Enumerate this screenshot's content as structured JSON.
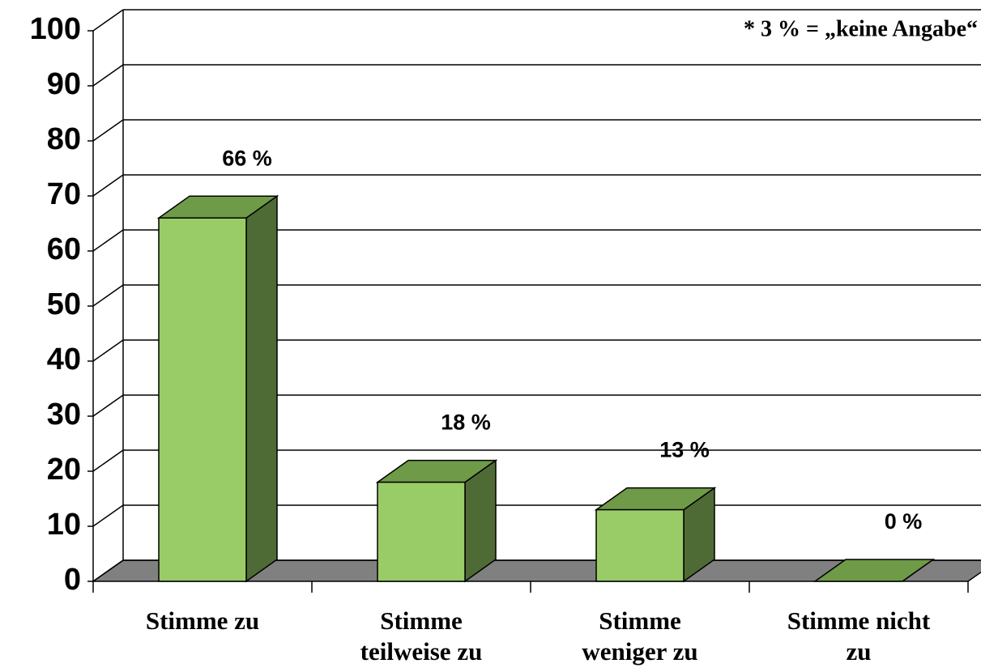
{
  "chart_data": {
    "type": "bar3d",
    "annotation": "* 3 % = „keine Angabe“",
    "categories": [
      "Stimme zu",
      "Stimme teilweise zu",
      "Stimme weniger zu",
      "Stimme nicht zu"
    ],
    "values": [
      66,
      18,
      13,
      0
    ],
    "value_labels": [
      "66 %",
      "18 %",
      "13 %",
      "0 %"
    ],
    "color": "#99cc66",
    "ylim": [
      0,
      100
    ],
    "yticks": [
      0,
      10,
      20,
      30,
      40,
      50,
      60,
      70,
      80,
      90,
      100
    ],
    "grid": true
  }
}
